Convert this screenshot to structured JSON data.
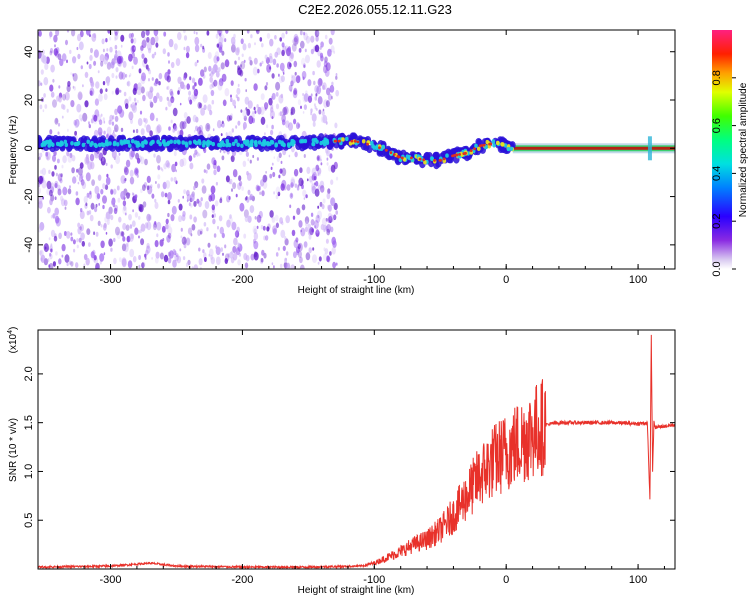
{
  "title": "C2E2.2026.055.12.11.G23",
  "chart_data": [
    {
      "type": "heatmap",
      "name": "spectrogram",
      "xlabel": "Height of straight line (km)",
      "ylabel": "Frequency (Hz)",
      "xlim": [
        -355,
        128
      ],
      "ylim": [
        -50,
        49
      ],
      "xticks": [
        -300,
        -200,
        -100,
        0,
        100
      ],
      "xtick_labels": [
        "-300",
        "-200",
        "-100",
        "0",
        "100"
      ],
      "yticks": [
        -40,
        -20,
        0,
        20,
        40
      ],
      "ytick_labels": [
        "-40",
        "-20",
        "0",
        "20",
        "40"
      ],
      "ridge": {
        "x": [
          -355,
          -320,
          -280,
          -240,
          -200,
          -160,
          -130,
          -115,
          -100,
          -90,
          -80,
          -70,
          -60,
          -50,
          -40,
          -30,
          -20,
          -10,
          0,
          5,
          128
        ],
        "y": [
          2,
          2,
          2,
          2,
          2,
          2,
          3,
          3,
          1,
          -1,
          -4,
          -4,
          -5,
          -5,
          -3,
          -2,
          1,
          2,
          1,
          0,
          0
        ]
      },
      "noise_extent_x": [
        -355,
        -128
      ],
      "colorbar": {
        "label": "Normalized spectral amplitude",
        "range": [
          0,
          1
        ],
        "ticks": [
          0.0,
          0.2,
          0.4,
          0.6,
          0.8
        ],
        "tick_labels": [
          "0.0",
          "0.2",
          "0.4",
          "0.6",
          "0.8"
        ]
      }
    },
    {
      "type": "line",
      "name": "snr",
      "xlabel": "Height of straight line (km)",
      "ylabel": "SNR (10 * v/v)",
      "multiplier_label": "(x10",
      "multiplier_exp": "4",
      "multiplier_close": ")",
      "xlim": [
        -355,
        128
      ],
      "ylim": [
        0,
        2.45
      ],
      "xticks": [
        -300,
        -200,
        -100,
        0,
        100
      ],
      "xtick_labels": [
        "-300",
        "-200",
        "-100",
        "0",
        "100"
      ],
      "yticks": [
        0.5,
        1.0,
        1.5,
        2.0
      ],
      "ytick_labels": [
        "0.5",
        "1.0",
        "1.5",
        "2.0"
      ],
      "series": [
        {
          "name": "SNR",
          "color": "#e8312a",
          "x": [
            -355,
            -300,
            -270,
            -250,
            -200,
            -150,
            -110,
            -100,
            -90,
            -80,
            -70,
            -60,
            -50,
            -40,
            -30,
            -20,
            -10,
            0,
            10,
            20,
            30,
            40,
            60,
            80,
            100,
            107,
            109,
            110,
            111,
            112,
            113,
            128
          ],
          "y": [
            0.02,
            0.03,
            0.06,
            0.03,
            0.02,
            0.02,
            0.03,
            0.06,
            0.12,
            0.18,
            0.25,
            0.3,
            0.4,
            0.55,
            0.75,
            0.95,
            1.1,
            1.2,
            1.3,
            1.4,
            1.48,
            1.5,
            1.5,
            1.5,
            1.49,
            1.5,
            0.7,
            2.4,
            1.0,
            1.5,
            1.45,
            1.48
          ]
        }
      ]
    }
  ],
  "colors": {
    "line": "#e8312a",
    "noise": "#7a2ee0",
    "ridge_core": "#1ecbe0",
    "band": "#b52414"
  }
}
